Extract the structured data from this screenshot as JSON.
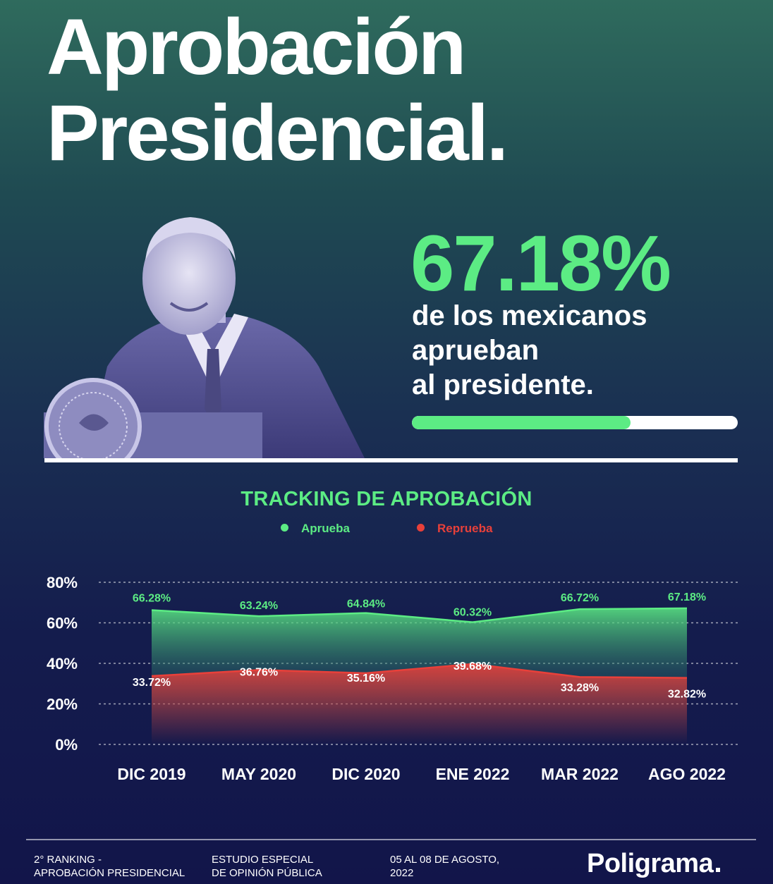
{
  "header": {
    "title_line1": "Aprobación",
    "title_line2": "Presidencial."
  },
  "highlight": {
    "percentage": "67.18%",
    "line1": "de los mexicanos",
    "line2": "aprueban",
    "line3": "al presidente.",
    "progress_fraction": 0.6718
  },
  "colors": {
    "approve": "#5cec84",
    "disapprove": "#e8403a",
    "background_top": "#2f6b5d",
    "background_bottom": "#12154a"
  },
  "chart_data": {
    "type": "area",
    "title": "TRACKING DE APROBACIÓN",
    "categories": [
      "DIC 2019",
      "MAY 2020",
      "DIC 2020",
      "ENE 2022",
      "MAR 2022",
      "AGO 2022"
    ],
    "series": [
      {
        "name": "Aprueba",
        "values": [
          66.28,
          63.24,
          64.84,
          60.32,
          66.72,
          67.18
        ],
        "labels": [
          "66.28%",
          "63.24%",
          "64.84%",
          "60.32%",
          "66.72%",
          "67.18%"
        ]
      },
      {
        "name": "Reprueba",
        "values": [
          33.72,
          36.76,
          35.16,
          39.68,
          33.28,
          32.82
        ],
        "labels": [
          "33.72%",
          "36.76%",
          "35.16%",
          "39.68%",
          "33.28%",
          "32.82%"
        ]
      }
    ],
    "ylim": [
      0,
      80
    ],
    "yticks": [
      "0%",
      "20%",
      "40%",
      "60%",
      "80%"
    ],
    "grid": true,
    "legend_position": "top-center"
  },
  "footer": {
    "col1_line1": "2° RANKING -",
    "col1_line2": "APROBACIÓN PRESIDENCIAL",
    "col2_line1": "ESTUDIO ESPECIAL",
    "col2_line2": "DE OPINIÓN PÚBLICA",
    "col3_line1": "05 AL 08 DE AGOSTO,",
    "col3_line2": "2022",
    "brand": "Poligrama"
  }
}
